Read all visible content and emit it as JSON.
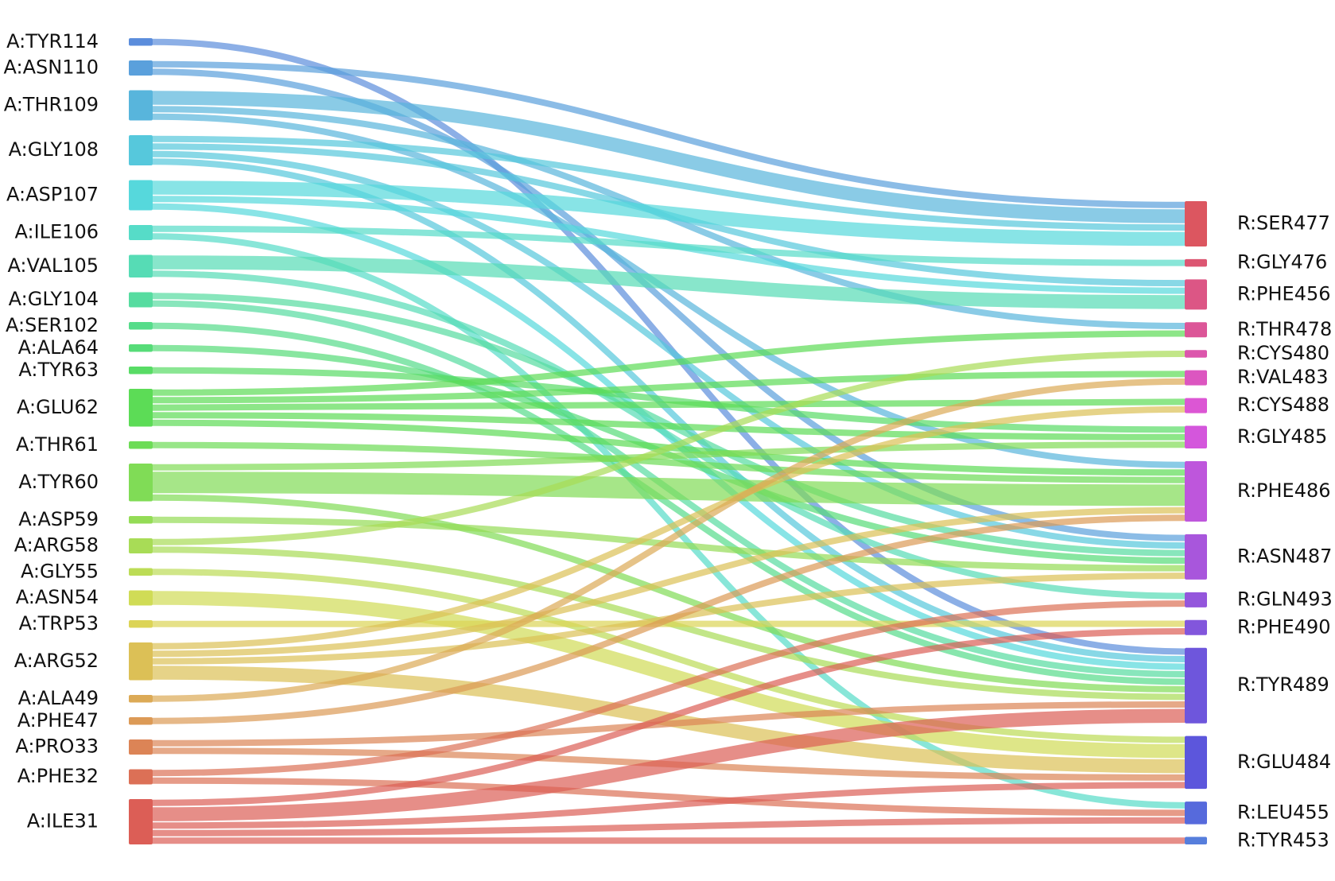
{
  "chart_data": {
    "type": "sankey",
    "sources": [
      {
        "name": "A:TYR114",
        "color": "#5b8ddc"
      },
      {
        "name": "A:ASN110",
        "color": "#5aa0dc"
      },
      {
        "name": "A:THR109",
        "color": "#58b5dc"
      },
      {
        "name": "A:GLY108",
        "color": "#56c8dc"
      },
      {
        "name": "A:ASP107",
        "color": "#56d8dc"
      },
      {
        "name": "A:ILE106",
        "color": "#56dcc8"
      },
      {
        "name": "A:VAL105",
        "color": "#56dcb5"
      },
      {
        "name": "A:GLY104",
        "color": "#56dca0"
      },
      {
        "name": "A:SER102",
        "color": "#56dc8a"
      },
      {
        "name": "A:ALA64",
        "color": "#56dc78"
      },
      {
        "name": "A:TYR63",
        "color": "#58dc65"
      },
      {
        "name": "A:GLU62",
        "color": "#5cdc56"
      },
      {
        "name": "A:THR61",
        "color": "#6cdc56"
      },
      {
        "name": "A:TYR60",
        "color": "#80dc56"
      },
      {
        "name": "A:ASP59",
        "color": "#94dc56"
      },
      {
        "name": "A:ARG58",
        "color": "#a8dc56"
      },
      {
        "name": "A:GLY55",
        "color": "#bcdc56"
      },
      {
        "name": "A:ASN54",
        "color": "#d0dc56"
      },
      {
        "name": "A:TRP53",
        "color": "#dcd456"
      },
      {
        "name": "A:ARG52",
        "color": "#dcc056"
      },
      {
        "name": "A:ALA49",
        "color": "#dcaa56"
      },
      {
        "name": "A:PHE47",
        "color": "#dc9a56"
      },
      {
        "name": "A:PRO33",
        "color": "#dc8456"
      },
      {
        "name": "A:PHE32",
        "color": "#dc7056"
      },
      {
        "name": "A:ILE31",
        "color": "#dc5e56"
      }
    ],
    "targets": [
      {
        "name": "R:SER477",
        "color": "#dc5660"
      },
      {
        "name": "R:GLY476",
        "color": "#dc5672"
      },
      {
        "name": "R:PHE456",
        "color": "#dc5685"
      },
      {
        "name": "R:THR478",
        "color": "#dc5698"
      },
      {
        "name": "R:CYS480",
        "color": "#dc56ac"
      },
      {
        "name": "R:VAL483",
        "color": "#dc56c0"
      },
      {
        "name": "R:CYS488",
        "color": "#dc56d4"
      },
      {
        "name": "R:GLY485",
        "color": "#d456dc"
      },
      {
        "name": "R:PHE486",
        "color": "#be56dc"
      },
      {
        "name": "R:ASN487",
        "color": "#a856dc"
      },
      {
        "name": "R:GLN493",
        "color": "#9456dc"
      },
      {
        "name": "R:PHE490",
        "color": "#8256dc"
      },
      {
        "name": "R:TYR489",
        "color": "#6e56dc"
      },
      {
        "name": "R:GLU484",
        "color": "#5c56dc"
      },
      {
        "name": "R:LEU455",
        "color": "#566adc"
      },
      {
        "name": "R:TYR453",
        "color": "#567edc"
      }
    ],
    "links": [
      {
        "source": "A:TYR114",
        "target": "R:TYR489",
        "value": 1
      },
      {
        "source": "A:ASN110",
        "target": "R:SER477",
        "value": 1
      },
      {
        "source": "A:ASN110",
        "target": "R:ASN487",
        "value": 1
      },
      {
        "source": "A:THR109",
        "target": "R:SER477",
        "value": 2
      },
      {
        "source": "A:THR109",
        "target": "R:THR478",
        "value": 1
      },
      {
        "source": "A:THR109",
        "target": "R:PHE486",
        "value": 1
      },
      {
        "source": "A:GLY108",
        "target": "R:SER477",
        "value": 1
      },
      {
        "source": "A:GLY108",
        "target": "R:PHE456",
        "value": 1
      },
      {
        "source": "A:GLY108",
        "target": "R:ASN487",
        "value": 1
      },
      {
        "source": "A:GLY108",
        "target": "R:TYR489",
        "value": 1
      },
      {
        "source": "A:ASP107",
        "target": "R:SER477",
        "value": 2
      },
      {
        "source": "A:ASP107",
        "target": "R:PHE456",
        "value": 1
      },
      {
        "source": "A:ASP107",
        "target": "R:TYR489",
        "value": 1
      },
      {
        "source": "A:ILE106",
        "target": "R:GLY476",
        "value": 1
      },
      {
        "source": "A:ILE106",
        "target": "R:LEU455",
        "value": 1
      },
      {
        "source": "A:VAL105",
        "target": "R:PHE456",
        "value": 2
      },
      {
        "source": "A:VAL105",
        "target": "R:GLN493",
        "value": 1
      },
      {
        "source": "A:GLY104",
        "target": "R:ASN487",
        "value": 1
      },
      {
        "source": "A:GLY104",
        "target": "R:TYR489",
        "value": 1
      },
      {
        "source": "A:SER102",
        "target": "R:TYR489",
        "value": 1
      },
      {
        "source": "A:ALA64",
        "target": "R:ASN487",
        "value": 1
      },
      {
        "source": "A:TYR63",
        "target": "R:GLY485",
        "value": 1
      },
      {
        "source": "A:GLU62",
        "target": "R:THR478",
        "value": 1
      },
      {
        "source": "A:GLU62",
        "target": "R:VAL483",
        "value": 1
      },
      {
        "source": "A:GLU62",
        "target": "R:CYS488",
        "value": 1
      },
      {
        "source": "A:GLU62",
        "target": "R:GLY485",
        "value": 1
      },
      {
        "source": "A:GLU62",
        "target": "R:PHE486",
        "value": 1
      },
      {
        "source": "A:THR61",
        "target": "R:PHE486",
        "value": 1
      },
      {
        "source": "A:TYR60",
        "target": "R:GLY485",
        "value": 1
      },
      {
        "source": "A:TYR60",
        "target": "R:PHE486",
        "value": 3
      },
      {
        "source": "A:TYR60",
        "target": "R:TYR489",
        "value": 1
      },
      {
        "source": "A:ASP59",
        "target": "R:ASN487",
        "value": 1
      },
      {
        "source": "A:ARG58",
        "target": "R:CYS480",
        "value": 1
      },
      {
        "source": "A:ARG58",
        "target": "R:TYR489",
        "value": 1
      },
      {
        "source": "A:GLY55",
        "target": "R:GLU484",
        "value": 1
      },
      {
        "source": "A:ASN54",
        "target": "R:GLU484",
        "value": 2
      },
      {
        "source": "A:TRP53",
        "target": "R:PHE490",
        "value": 1
      },
      {
        "source": "A:ARG52",
        "target": "R:CYS488",
        "value": 1
      },
      {
        "source": "A:ARG52",
        "target": "R:PHE486",
        "value": 1
      },
      {
        "source": "A:ARG52",
        "target": "R:ASN487",
        "value": 1
      },
      {
        "source": "A:ARG52",
        "target": "R:GLU484",
        "value": 2
      },
      {
        "source": "A:ALA49",
        "target": "R:VAL483",
        "value": 1
      },
      {
        "source": "A:PHE47",
        "target": "R:PHE486",
        "value": 1
      },
      {
        "source": "A:PRO33",
        "target": "R:TYR489",
        "value": 1
      },
      {
        "source": "A:PRO33",
        "target": "R:GLU484",
        "value": 1
      },
      {
        "source": "A:PHE32",
        "target": "R:GLN493",
        "value": 1
      },
      {
        "source": "A:PHE32",
        "target": "R:LEU455",
        "value": 1
      },
      {
        "source": "A:ILE31",
        "target": "R:PHE490",
        "value": 1
      },
      {
        "source": "A:ILE31",
        "target": "R:TYR489",
        "value": 2
      },
      {
        "source": "A:ILE31",
        "target": "R:GLU484",
        "value": 1
      },
      {
        "source": "A:ILE31",
        "target": "R:LEU455",
        "value": 1
      },
      {
        "source": "A:ILE31",
        "target": "R:TYR453",
        "value": 1
      }
    ]
  }
}
